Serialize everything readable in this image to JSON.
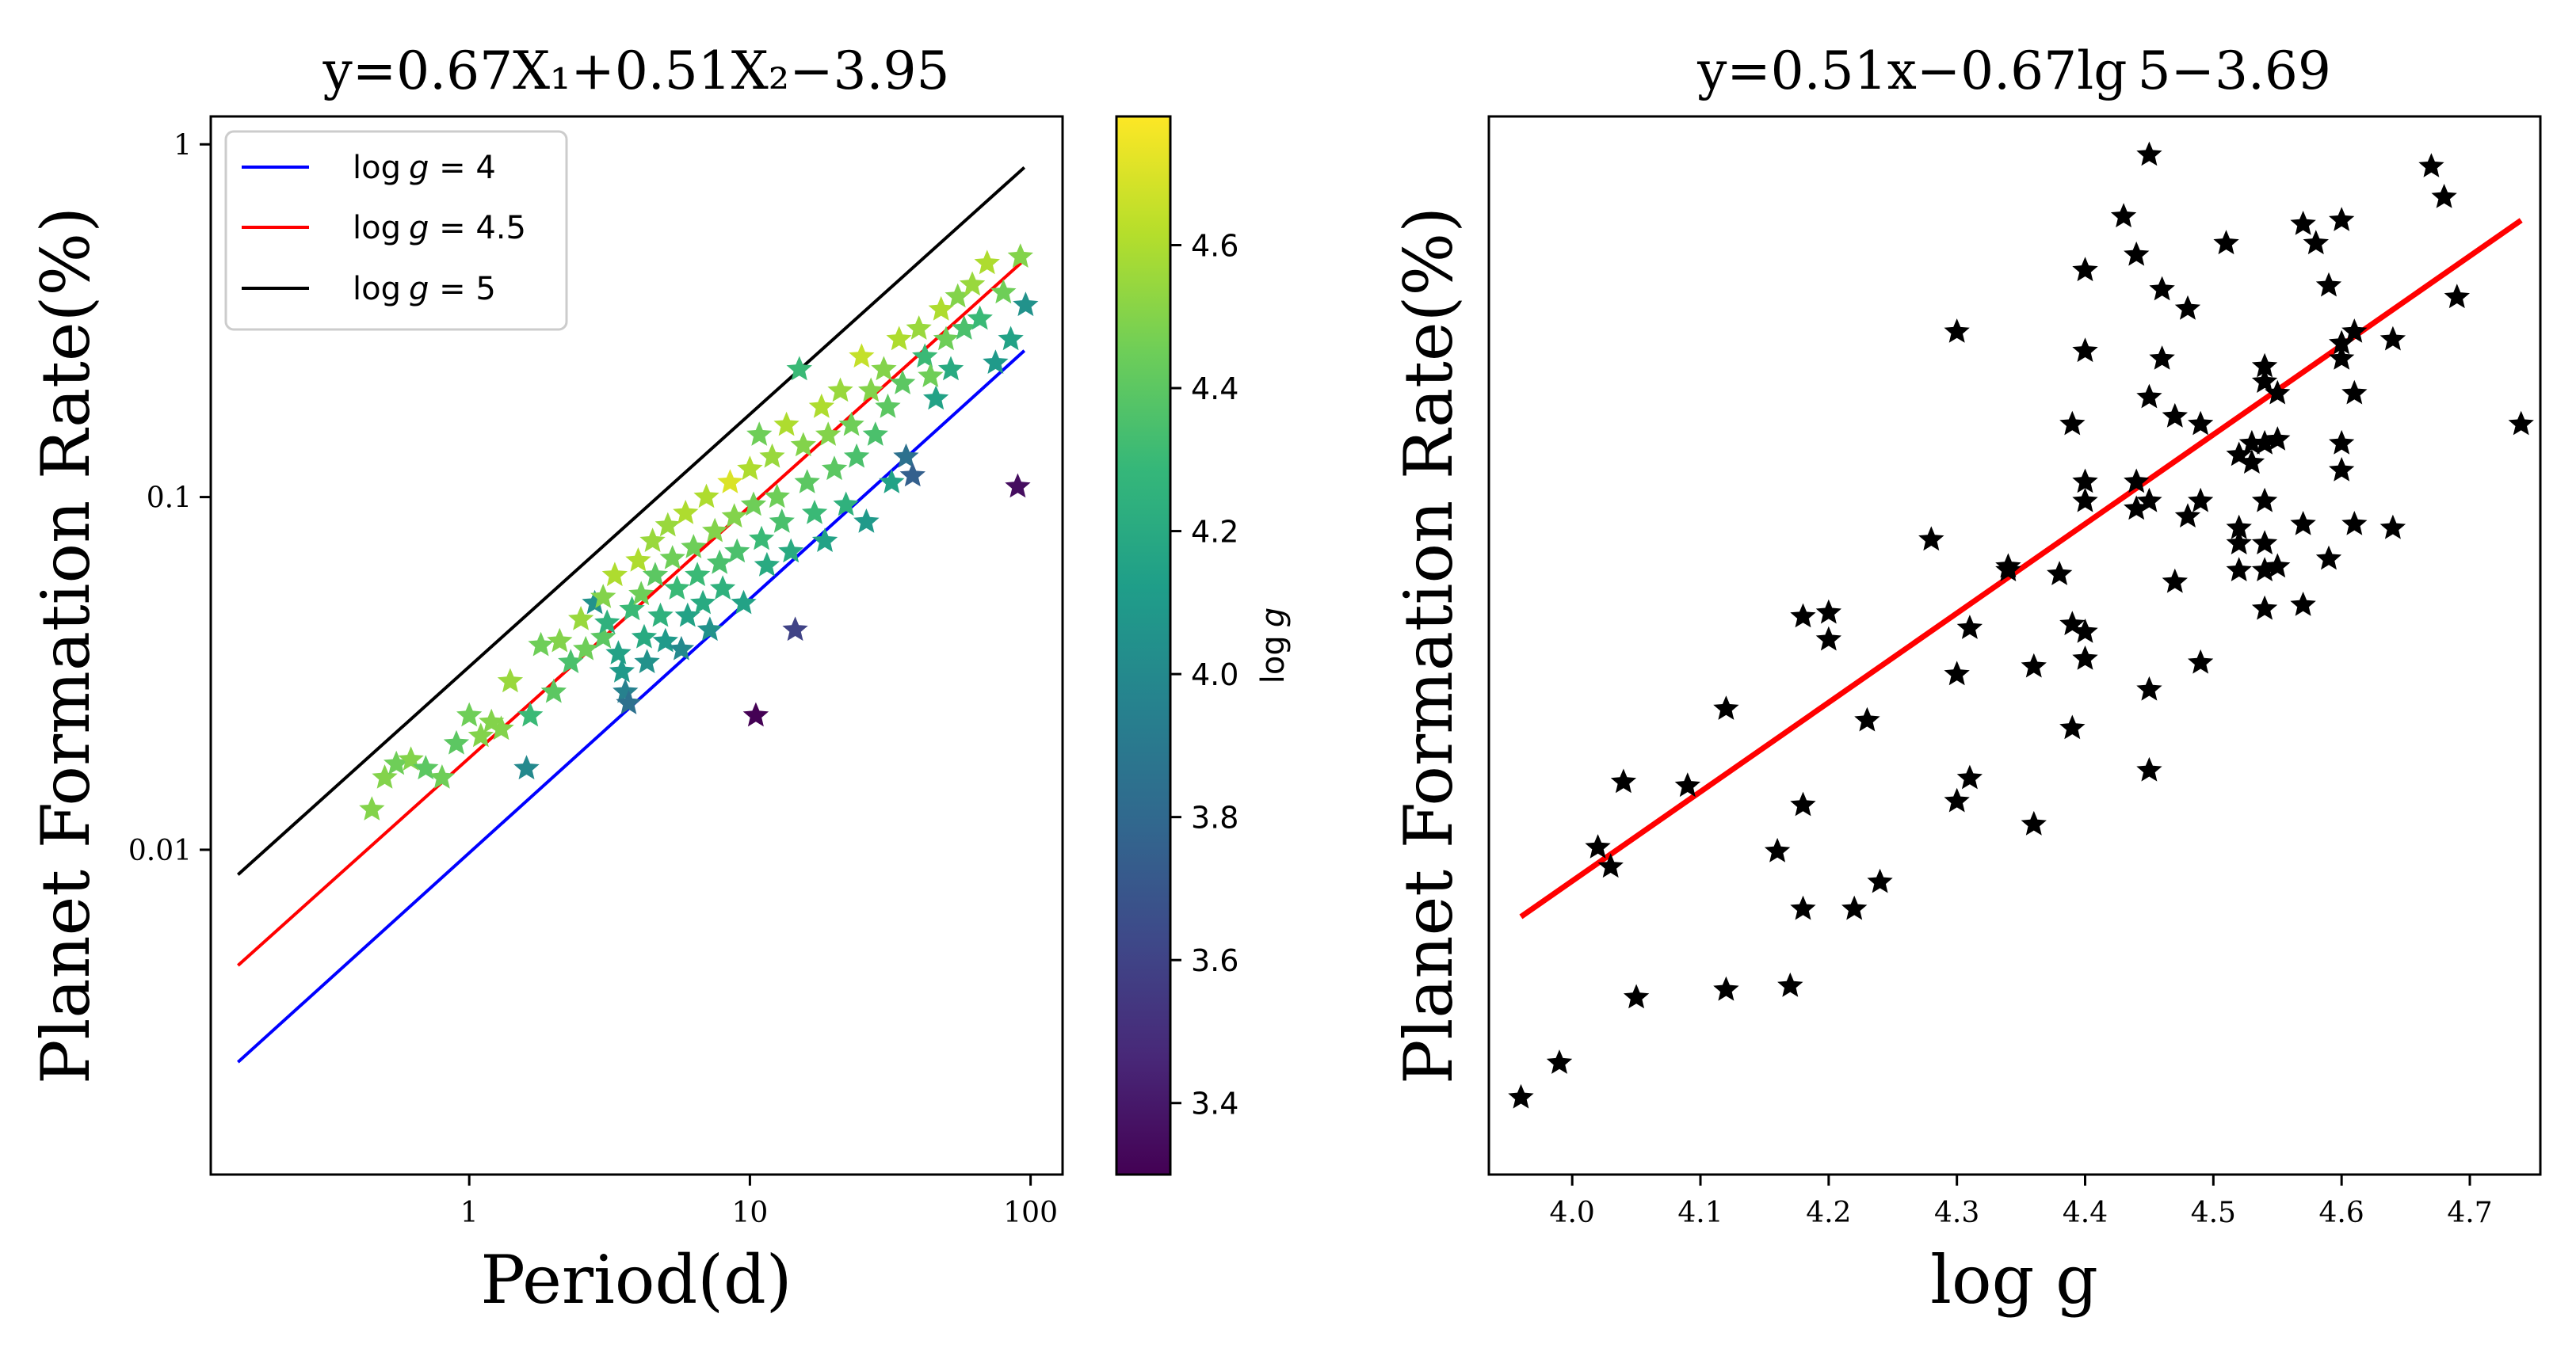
{
  "chart_data": [
    {
      "type": "scatter",
      "title": "y=0.67X₁+0.51X₂−3.95",
      "xlabel": "Period(d)",
      "ylabel": "Planet Formation Rate(%)",
      "xscale": "log",
      "yscale": "log",
      "xlim": [
        0.12,
        130
      ],
      "ylim": [
        0.0012,
        1.2
      ],
      "xticks": [
        {
          "value": 1,
          "label": "1"
        },
        {
          "value": 10,
          "label": "10"
        },
        {
          "value": 100,
          "label": "100"
        }
      ],
      "yticks": [
        {
          "value": 0.01,
          "label": "0.01"
        },
        {
          "value": 0.1,
          "label": "0.1"
        },
        {
          "value": 1,
          "label": "1"
        }
      ],
      "marker": "star",
      "lines": [
        {
          "name": "log g = 4",
          "color": "#0000ff",
          "x": [
            0.15,
            95
          ],
          "y": [
            0.0025,
            0.26
          ]
        },
        {
          "name": "log g = 4.5",
          "color": "#ff0000",
          "x": [
            0.15,
            95
          ],
          "y": [
            0.0047,
            0.47
          ]
        },
        {
          "name": "log g = 5",
          "color": "#000000",
          "x": [
            0.15,
            95
          ],
          "y": [
            0.0085,
            0.86
          ]
        }
      ],
      "legend": {
        "position": "top-left",
        "entries": [
          {
            "prefix": "log",
            "var": "g",
            "suffix": " = 4",
            "color": "#0000ff"
          },
          {
            "prefix": "log",
            "var": "g",
            "suffix": " = 4.5",
            "color": "#ff0000"
          },
          {
            "prefix": "log",
            "var": "g",
            "suffix": " = 5",
            "color": "#000000"
          }
        ]
      },
      "colorbar": {
        "label": "log g",
        "colormap": "viridis",
        "range": [
          3.3,
          4.78
        ],
        "ticks": [
          {
            "value": 3.4,
            "label": "3.4"
          },
          {
            "value": 3.6,
            "label": "3.6"
          },
          {
            "value": 3.8,
            "label": "3.8"
          },
          {
            "value": 4.0,
            "label": "4.0"
          },
          {
            "value": 4.2,
            "label": "4.2"
          },
          {
            "value": 4.4,
            "label": "4.4"
          },
          {
            "value": 4.6,
            "label": "4.6"
          }
        ],
        "stops": [
          "#440154",
          "#482878",
          "#3e4989",
          "#31688e",
          "#26828e",
          "#1f9e89",
          "#35b779",
          "#6ece58",
          "#b5de2b",
          "#fde725"
        ]
      },
      "points": [
        {
          "x": 0.45,
          "y": 0.013,
          "g": 4.5
        },
        {
          "x": 0.5,
          "y": 0.016,
          "g": 4.5
        },
        {
          "x": 0.55,
          "y": 0.0175,
          "g": 4.45
        },
        {
          "x": 0.62,
          "y": 0.018,
          "g": 4.5
        },
        {
          "x": 0.7,
          "y": 0.017,
          "g": 4.4
        },
        {
          "x": 0.8,
          "y": 0.016,
          "g": 4.45
        },
        {
          "x": 0.9,
          "y": 0.02,
          "g": 4.4
        },
        {
          "x": 1.0,
          "y": 0.024,
          "g": 4.45
        },
        {
          "x": 1.1,
          "y": 0.021,
          "g": 4.5
        },
        {
          "x": 1.2,
          "y": 0.023,
          "g": 4.5
        },
        {
          "x": 1.3,
          "y": 0.022,
          "g": 4.5
        },
        {
          "x": 1.4,
          "y": 0.03,
          "g": 4.55
        },
        {
          "x": 1.6,
          "y": 0.017,
          "g": 4.0
        },
        {
          "x": 1.65,
          "y": 0.024,
          "g": 4.3
        },
        {
          "x": 1.8,
          "y": 0.038,
          "g": 4.45
        },
        {
          "x": 2.0,
          "y": 0.028,
          "g": 4.4
        },
        {
          "x": 2.1,
          "y": 0.039,
          "g": 4.5
        },
        {
          "x": 2.3,
          "y": 0.034,
          "g": 4.35
        },
        {
          "x": 2.5,
          "y": 0.045,
          "g": 4.55
        },
        {
          "x": 2.6,
          "y": 0.037,
          "g": 4.45
        },
        {
          "x": 2.8,
          "y": 0.05,
          "g": 4.05
        },
        {
          "x": 3.0,
          "y": 0.052,
          "g": 4.5
        },
        {
          "x": 3.0,
          "y": 0.04,
          "g": 4.4
        },
        {
          "x": 3.1,
          "y": 0.044,
          "g": 4.25
        },
        {
          "x": 3.3,
          "y": 0.06,
          "g": 4.6
        },
        {
          "x": 3.4,
          "y": 0.036,
          "g": 4.15
        },
        {
          "x": 3.5,
          "y": 0.032,
          "g": 4.1
        },
        {
          "x": 3.6,
          "y": 0.028,
          "g": 3.95
        },
        {
          "x": 3.7,
          "y": 0.026,
          "g": 3.85
        },
        {
          "x": 3.8,
          "y": 0.048,
          "g": 4.3
        },
        {
          "x": 4.0,
          "y": 0.066,
          "g": 4.6
        },
        {
          "x": 4.1,
          "y": 0.053,
          "g": 4.45
        },
        {
          "x": 4.2,
          "y": 0.04,
          "g": 4.2
        },
        {
          "x": 4.3,
          "y": 0.034,
          "g": 4.05
        },
        {
          "x": 4.5,
          "y": 0.075,
          "g": 4.55
        },
        {
          "x": 4.6,
          "y": 0.06,
          "g": 4.4
        },
        {
          "x": 4.8,
          "y": 0.046,
          "g": 4.25
        },
        {
          "x": 5.0,
          "y": 0.039,
          "g": 4.1
        },
        {
          "x": 5.1,
          "y": 0.083,
          "g": 4.55
        },
        {
          "x": 5.3,
          "y": 0.067,
          "g": 4.45
        },
        {
          "x": 5.5,
          "y": 0.055,
          "g": 4.3
        },
        {
          "x": 5.7,
          "y": 0.037,
          "g": 4.0
        },
        {
          "x": 5.9,
          "y": 0.09,
          "g": 4.6
        },
        {
          "x": 6.0,
          "y": 0.046,
          "g": 4.15
        },
        {
          "x": 6.3,
          "y": 0.072,
          "g": 4.45
        },
        {
          "x": 6.5,
          "y": 0.06,
          "g": 4.3
        },
        {
          "x": 6.8,
          "y": 0.05,
          "g": 4.2
        },
        {
          "x": 7.0,
          "y": 0.1,
          "g": 4.6
        },
        {
          "x": 7.2,
          "y": 0.042,
          "g": 4.05
        },
        {
          "x": 7.5,
          "y": 0.08,
          "g": 4.5
        },
        {
          "x": 7.8,
          "y": 0.065,
          "g": 4.35
        },
        {
          "x": 8.0,
          "y": 0.055,
          "g": 4.25
        },
        {
          "x": 8.5,
          "y": 0.11,
          "g": 4.7
        },
        {
          "x": 8.8,
          "y": 0.088,
          "g": 4.5
        },
        {
          "x": 9.0,
          "y": 0.07,
          "g": 4.35
        },
        {
          "x": 9.5,
          "y": 0.05,
          "g": 4.15
        },
        {
          "x": 10.0,
          "y": 0.12,
          "g": 4.6
        },
        {
          "x": 10.3,
          "y": 0.095,
          "g": 4.45
        },
        {
          "x": 10.5,
          "y": 0.024,
          "g": 3.3
        },
        {
          "x": 10.8,
          "y": 0.15,
          "g": 4.45
        },
        {
          "x": 11.0,
          "y": 0.076,
          "g": 4.3
        },
        {
          "x": 11.5,
          "y": 0.064,
          "g": 4.2
        },
        {
          "x": 12.0,
          "y": 0.13,
          "g": 4.55
        },
        {
          "x": 12.5,
          "y": 0.1,
          "g": 4.45
        },
        {
          "x": 13.0,
          "y": 0.085,
          "g": 4.35
        },
        {
          "x": 13.5,
          "y": 0.16,
          "g": 4.6
        },
        {
          "x": 14.0,
          "y": 0.07,
          "g": 4.2
        },
        {
          "x": 14.5,
          "y": 0.042,
          "g": 3.6
        },
        {
          "x": 15.0,
          "y": 0.23,
          "g": 4.3
        },
        {
          "x": 15.5,
          "y": 0.14,
          "g": 4.5
        },
        {
          "x": 16.0,
          "y": 0.11,
          "g": 4.4
        },
        {
          "x": 17.0,
          "y": 0.09,
          "g": 4.3
        },
        {
          "x": 18.0,
          "y": 0.18,
          "g": 4.6
        },
        {
          "x": 18.5,
          "y": 0.075,
          "g": 4.15
        },
        {
          "x": 19.0,
          "y": 0.15,
          "g": 4.5
        },
        {
          "x": 20.0,
          "y": 0.12,
          "g": 4.4
        },
        {
          "x": 21.0,
          "y": 0.2,
          "g": 4.55
        },
        {
          "x": 22.0,
          "y": 0.095,
          "g": 4.25
        },
        {
          "x": 23.0,
          "y": 0.16,
          "g": 4.45
        },
        {
          "x": 24.0,
          "y": 0.13,
          "g": 4.35
        },
        {
          "x": 25.0,
          "y": 0.25,
          "g": 4.65
        },
        {
          "x": 26.0,
          "y": 0.085,
          "g": 4.1
        },
        {
          "x": 27.0,
          "y": 0.2,
          "g": 4.5
        },
        {
          "x": 28.0,
          "y": 0.15,
          "g": 4.35
        },
        {
          "x": 30.0,
          "y": 0.23,
          "g": 4.5
        },
        {
          "x": 31.0,
          "y": 0.18,
          "g": 4.4
        },
        {
          "x": 32.0,
          "y": 0.11,
          "g": 4.15
        },
        {
          "x": 34.0,
          "y": 0.28,
          "g": 4.6
        },
        {
          "x": 35.0,
          "y": 0.21,
          "g": 4.4
        },
        {
          "x": 36.0,
          "y": 0.13,
          "g": 3.85
        },
        {
          "x": 38.0,
          "y": 0.115,
          "g": 3.75
        },
        {
          "x": 40.0,
          "y": 0.3,
          "g": 4.55
        },
        {
          "x": 42.0,
          "y": 0.25,
          "g": 4.3
        },
        {
          "x": 44.0,
          "y": 0.22,
          "g": 4.45
        },
        {
          "x": 46.0,
          "y": 0.19,
          "g": 4.15
        },
        {
          "x": 48.0,
          "y": 0.34,
          "g": 4.6
        },
        {
          "x": 50.0,
          "y": 0.28,
          "g": 4.45
        },
        {
          "x": 52.0,
          "y": 0.23,
          "g": 4.2
        },
        {
          "x": 55.0,
          "y": 0.37,
          "g": 4.5
        },
        {
          "x": 58.0,
          "y": 0.3,
          "g": 4.35
        },
        {
          "x": 62.0,
          "y": 0.4,
          "g": 4.55
        },
        {
          "x": 66.0,
          "y": 0.32,
          "g": 4.3
        },
        {
          "x": 70.0,
          "y": 0.46,
          "g": 4.6
        },
        {
          "x": 75.0,
          "y": 0.24,
          "g": 4.1
        },
        {
          "x": 80.0,
          "y": 0.38,
          "g": 4.45
        },
        {
          "x": 85.0,
          "y": 0.28,
          "g": 4.15
        },
        {
          "x": 90.0,
          "y": 0.107,
          "g": 3.35
        },
        {
          "x": 92.0,
          "y": 0.48,
          "g": 4.5
        },
        {
          "x": 96.0,
          "y": 0.35,
          "g": 4.05
        }
      ]
    },
    {
      "type": "scatter",
      "title": "y=0.51x−0.67lg 5−3.69",
      "xlabel": "log g",
      "ylabel": "Planet Formation Rate(%)",
      "xlim": [
        3.935,
        4.755
      ],
      "ylim": [
        -3.05,
        -0.3
      ],
      "xticks": [
        {
          "value": 4.0,
          "label": "4.0"
        },
        {
          "value": 4.1,
          "label": "4.1"
        },
        {
          "value": 4.2,
          "label": "4.2"
        },
        {
          "value": 4.3,
          "label": "4.3"
        },
        {
          "value": 4.4,
          "label": "4.4"
        },
        {
          "value": 4.5,
          "label": "4.5"
        },
        {
          "value": 4.6,
          "label": "4.6"
        },
        {
          "value": 4.7,
          "label": "4.7"
        }
      ],
      "marker": "star",
      "marker_color": "#000000",
      "fit_line": {
        "color": "#ff0000",
        "x": [
          3.96,
          4.74
        ],
        "y": [
          -2.38,
          -0.57
        ]
      },
      "points": [
        {
          "x": 3.96,
          "y": -2.85
        },
        {
          "x": 3.99,
          "y": -2.76
        },
        {
          "x": 4.02,
          "y": -2.2
        },
        {
          "x": 4.03,
          "y": -2.25
        },
        {
          "x": 4.04,
          "y": -2.03
        },
        {
          "x": 4.05,
          "y": -2.59
        },
        {
          "x": 4.09,
          "y": -2.04
        },
        {
          "x": 4.12,
          "y": -1.84
        },
        {
          "x": 4.12,
          "y": -2.57
        },
        {
          "x": 4.16,
          "y": -2.21
        },
        {
          "x": 4.17,
          "y": -2.56
        },
        {
          "x": 4.18,
          "y": -1.6
        },
        {
          "x": 4.18,
          "y": -2.09
        },
        {
          "x": 4.18,
          "y": -2.36
        },
        {
          "x": 4.2,
          "y": -1.59
        },
        {
          "x": 4.2,
          "y": -1.66
        },
        {
          "x": 4.22,
          "y": -2.36
        },
        {
          "x": 4.23,
          "y": -1.87
        },
        {
          "x": 4.24,
          "y": -2.29
        },
        {
          "x": 4.28,
          "y": -1.4
        },
        {
          "x": 4.3,
          "y": -0.86
        },
        {
          "x": 4.3,
          "y": -1.75
        },
        {
          "x": 4.3,
          "y": -2.08
        },
        {
          "x": 4.31,
          "y": -1.63
        },
        {
          "x": 4.31,
          "y": -2.02
        },
        {
          "x": 4.34,
          "y": -1.47
        },
        {
          "x": 4.34,
          "y": -1.48
        },
        {
          "x": 4.36,
          "y": -1.73
        },
        {
          "x": 4.36,
          "y": -2.14
        },
        {
          "x": 4.38,
          "y": -1.49
        },
        {
          "x": 4.39,
          "y": -1.1
        },
        {
          "x": 4.39,
          "y": -1.62
        },
        {
          "x": 4.39,
          "y": -1.89
        },
        {
          "x": 4.4,
          "y": -0.7
        },
        {
          "x": 4.4,
          "y": -0.91
        },
        {
          "x": 4.4,
          "y": -1.25
        },
        {
          "x": 4.4,
          "y": -1.3
        },
        {
          "x": 4.4,
          "y": -1.64
        },
        {
          "x": 4.4,
          "y": -1.71
        },
        {
          "x": 4.43,
          "y": -0.56
        },
        {
          "x": 4.44,
          "y": -0.66
        },
        {
          "x": 4.44,
          "y": -1.25
        },
        {
          "x": 4.44,
          "y": -1.32
        },
        {
          "x": 4.45,
          "y": -0.4
        },
        {
          "x": 4.45,
          "y": -1.03
        },
        {
          "x": 4.45,
          "y": -1.3
        },
        {
          "x": 4.45,
          "y": -1.79
        },
        {
          "x": 4.45,
          "y": -2.0
        },
        {
          "x": 4.46,
          "y": -0.75
        },
        {
          "x": 4.46,
          "y": -0.93
        },
        {
          "x": 4.47,
          "y": -1.08
        },
        {
          "x": 4.47,
          "y": -1.51
        },
        {
          "x": 4.48,
          "y": -0.8
        },
        {
          "x": 4.48,
          "y": -1.34
        },
        {
          "x": 4.49,
          "y": -1.1
        },
        {
          "x": 4.49,
          "y": -1.3
        },
        {
          "x": 4.49,
          "y": -1.72
        },
        {
          "x": 4.51,
          "y": -0.63
        },
        {
          "x": 4.52,
          "y": -1.18
        },
        {
          "x": 4.52,
          "y": -1.37
        },
        {
          "x": 4.52,
          "y": -1.41
        },
        {
          "x": 4.52,
          "y": -1.48
        },
        {
          "x": 4.53,
          "y": -1.15
        },
        {
          "x": 4.53,
          "y": -1.2
        },
        {
          "x": 4.54,
          "y": -0.95
        },
        {
          "x": 4.54,
          "y": -0.99
        },
        {
          "x": 4.54,
          "y": -1.15
        },
        {
          "x": 4.54,
          "y": -1.3
        },
        {
          "x": 4.54,
          "y": -1.41
        },
        {
          "x": 4.54,
          "y": -1.48
        },
        {
          "x": 4.54,
          "y": -1.58
        },
        {
          "x": 4.55,
          "y": -1.14
        },
        {
          "x": 4.55,
          "y": -1.47
        },
        {
          "x": 4.55,
          "y": -1.02
        },
        {
          "x": 4.57,
          "y": -0.58
        },
        {
          "x": 4.57,
          "y": -1.36
        },
        {
          "x": 4.57,
          "y": -1.57
        },
        {
          "x": 4.58,
          "y": -0.63
        },
        {
          "x": 4.59,
          "y": -0.74
        },
        {
          "x": 4.59,
          "y": -1.45
        },
        {
          "x": 4.6,
          "y": -0.57
        },
        {
          "x": 4.6,
          "y": -0.89
        },
        {
          "x": 4.6,
          "y": -0.93
        },
        {
          "x": 4.6,
          "y": -1.15
        },
        {
          "x": 4.6,
          "y": -1.22
        },
        {
          "x": 4.61,
          "y": -0.86
        },
        {
          "x": 4.61,
          "y": -1.02
        },
        {
          "x": 4.61,
          "y": -1.36
        },
        {
          "x": 4.64,
          "y": -0.88
        },
        {
          "x": 4.64,
          "y": -1.37
        },
        {
          "x": 4.67,
          "y": -0.43
        },
        {
          "x": 4.68,
          "y": -0.51
        },
        {
          "x": 4.69,
          "y": -0.77
        },
        {
          "x": 4.74,
          "y": -1.1
        }
      ]
    }
  ]
}
